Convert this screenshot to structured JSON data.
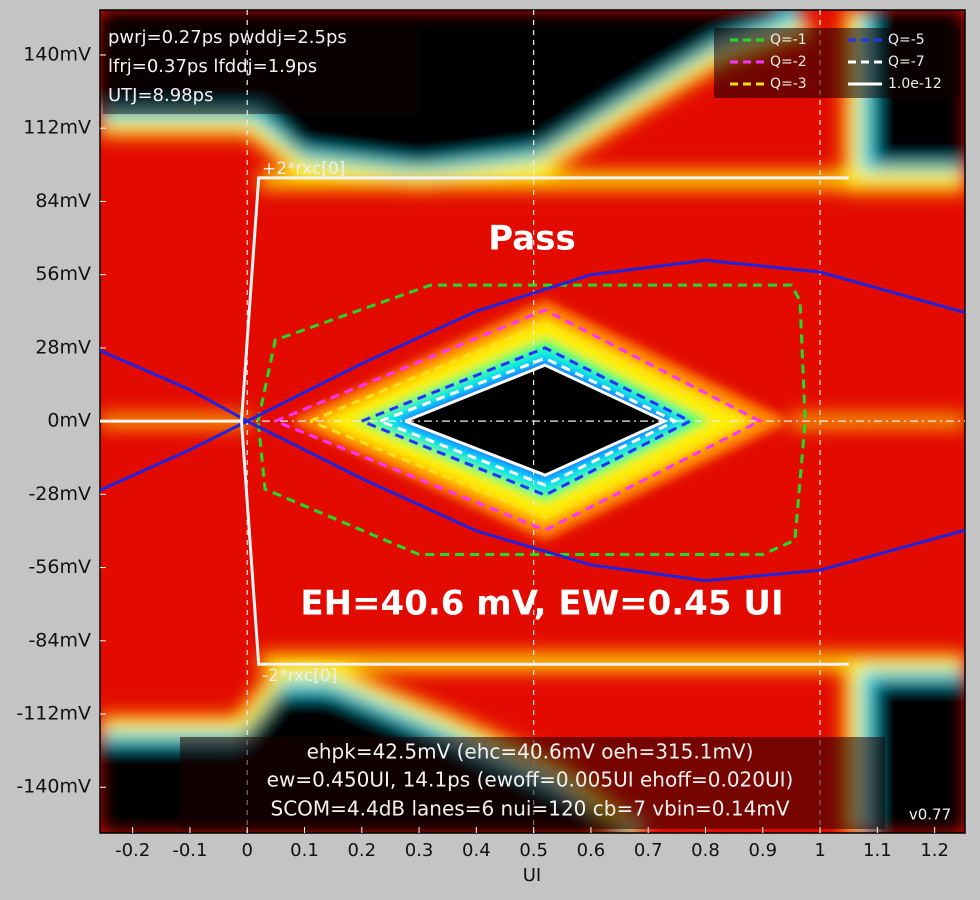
{
  "chart_data": {
    "type": "line",
    "x_label": "UI",
    "xlim": [
      -0.257,
      1.253
    ],
    "xticks": [
      -0.2,
      -0.1,
      0,
      0.1,
      0.2,
      0.3,
      0.4,
      0.5,
      0.6,
      0.7,
      0.8,
      0.9,
      1,
      1.1,
      1.2
    ],
    "ylim": [
      -157.5,
      157.2
    ],
    "yticks": [
      {
        "value": -140,
        "label": "-140mV"
      },
      {
        "value": -112,
        "label": "-112mV"
      },
      {
        "value": -84,
        "label": "-84mV"
      },
      {
        "value": -56,
        "label": "-56mV"
      },
      {
        "value": -28,
        "label": "-28mV"
      },
      {
        "value": 0,
        "label": "0mV"
      },
      {
        "value": 28,
        "label": "28mV"
      },
      {
        "value": 56,
        "label": "56mV"
      },
      {
        "value": 84,
        "label": "84mV"
      },
      {
        "value": 112,
        "label": "112mV"
      },
      {
        "value": 140,
        "label": "140mV"
      }
    ],
    "ref_lines": {
      "x": [
        0,
        0.5,
        1
      ],
      "y": [
        0
      ]
    },
    "series": [
      {
        "name": "Q=-1",
        "color": "#22dd22",
        "dash": true,
        "x": [
          0.019,
          0.049,
          0.32,
          0.95,
          0.965,
          0.974,
          0.956,
          0.9,
          0.3,
          0.031,
          0.019
        ],
        "y": [
          0,
          31,
          52,
          52,
          46,
          0,
          -45.5,
          -51,
          -51,
          -26,
          0
        ]
      },
      {
        "name": "Q=-2",
        "color": "#ff33ff",
        "dash": true,
        "x": [
          0.049,
          0.52,
          0.895,
          0.52,
          0.049
        ],
        "y": [
          0,
          42.5,
          0,
          -41.7,
          0
        ]
      },
      {
        "name": "Q=-3",
        "color": "#ffdd22",
        "dash": true,
        "x": [
          0.11,
          0.52,
          0.864,
          0.52,
          0.11
        ],
        "y": [
          0,
          37.5,
          0,
          -36.7,
          0
        ]
      },
      {
        "name": "Q=-5",
        "color": "#2233ff",
        "dash": true,
        "x": [
          0.2,
          0.52,
          0.773,
          0.52,
          0.2
        ],
        "y": [
          0,
          28,
          0,
          -28.3,
          0
        ]
      },
      {
        "name": "Q=-7",
        "color": "#ffffff",
        "dash": true,
        "x": [
          0.232,
          0.52,
          0.747,
          0.52,
          0.232
        ],
        "y": [
          0,
          24,
          0,
          -24.5,
          0
        ]
      },
      {
        "name": "1.0e-12",
        "color": "#ffffff",
        "dash": false,
        "x": [
          0.276,
          0.52,
          0.729,
          0.52,
          0.276
        ],
        "y": [
          0,
          21.4,
          0,
          -20.7,
          0
        ]
      },
      {
        "color": "#2222dd",
        "dash": false,
        "x": [
          -0.257,
          -0.1,
          0,
          0.2,
          0.4,
          0.6,
          0.8,
          1.0,
          1.253
        ],
        "y": [
          27,
          12,
          0,
          -22,
          -42,
          -55,
          -61,
          -57,
          -41.7
        ]
      },
      {
        "color": "#2222dd",
        "dash": false,
        "x": [
          -0.257,
          -0.1,
          0,
          0.2,
          0.4,
          0.6,
          0.8,
          1.0,
          1.253
        ],
        "y": [
          -26.4,
          -11,
          0,
          22,
          42,
          56,
          61.5,
          57,
          41.5
        ]
      },
      {
        "color": "#f4f4f4",
        "dash": false,
        "x": [
          -0.257,
          -0.01,
          0.02,
          1.05,
          null,
          -0.01,
          0.02,
          1.05
        ],
        "y": [
          0,
          0,
          93,
          93,
          null,
          0,
          -93,
          -93
        ]
      }
    ],
    "stats_box": [
      "pwrj=0.27ps pwddj=2.5ps",
      "lfrj=0.37ps lfddj=1.9ps",
      "UTJ=8.98ps"
    ],
    "mask_labels": [
      "+2*rxc[0]",
      "-2*rxc[0]"
    ],
    "pass_label": "Pass",
    "eye_label": "EH=40.6 mV, EW=0.45 UI",
    "summary_box": [
      "ehpk=42.5mV (ehc=40.6mV oeh=315.1mV)",
      "ew=0.450UI, 14.1ps (ewoff=0.005UI ehoff=0.020UI)",
      "SCOM=4.4dB lanes=6 nui=120 cb=7 vbin=0.14mV"
    ],
    "version": "v0.77"
  }
}
